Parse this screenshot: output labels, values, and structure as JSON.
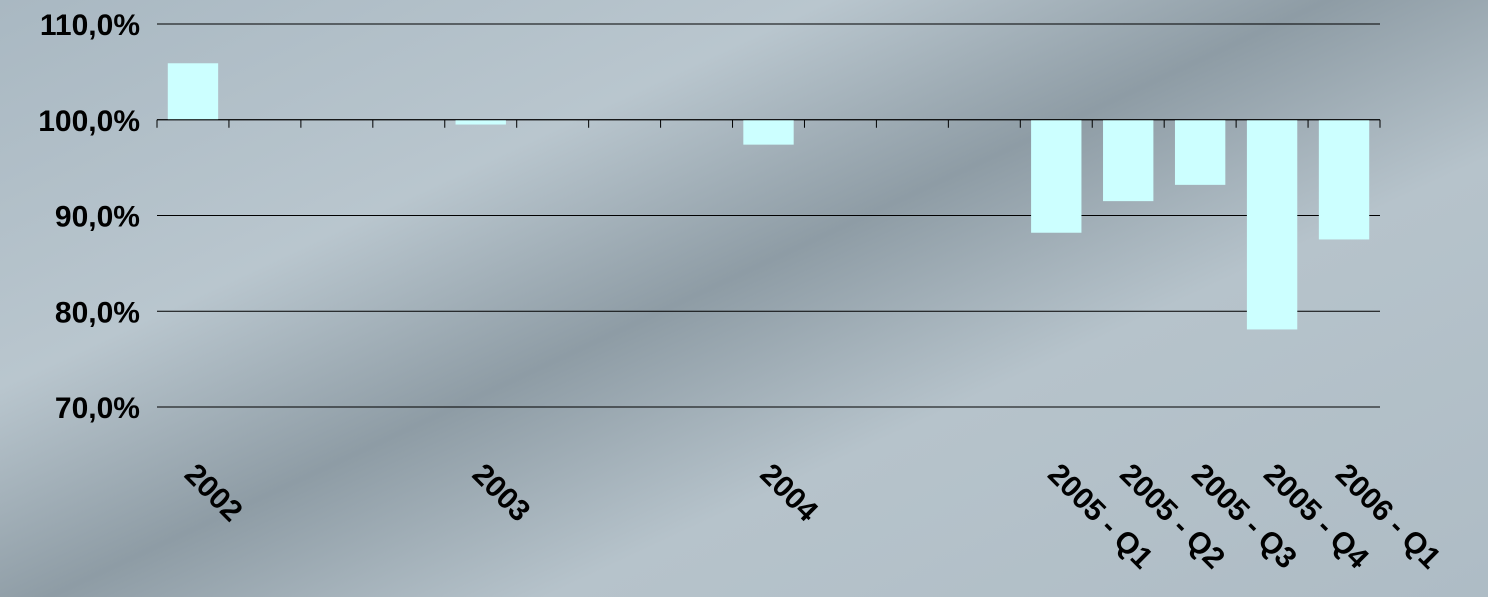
{
  "chart_data": {
    "type": "bar",
    "title": "",
    "xlabel": "",
    "ylabel": "",
    "baseline": 100,
    "ylim": [
      70,
      110
    ],
    "yticks": [
      70,
      80,
      90,
      100,
      110
    ],
    "ytick_labels": [
      "70,0%",
      "80,0%",
      "90,0%",
      "100,0%",
      "110,0%"
    ],
    "grid": true,
    "bar_color": "#ccffff",
    "categories": [
      "2002",
      "",
      "",
      "",
      "2003",
      "",
      "",
      "",
      "2004",
      "",
      "",
      "",
      "2005 - Q1",
      "2005 - Q2",
      "2005 - Q3",
      "2005 - Q4",
      "2006 - Q1"
    ],
    "values": [
      105.9,
      null,
      null,
      null,
      99.5,
      null,
      null,
      null,
      97.4,
      null,
      null,
      null,
      88.2,
      91.5,
      93.2,
      78.1,
      87.5
    ]
  }
}
